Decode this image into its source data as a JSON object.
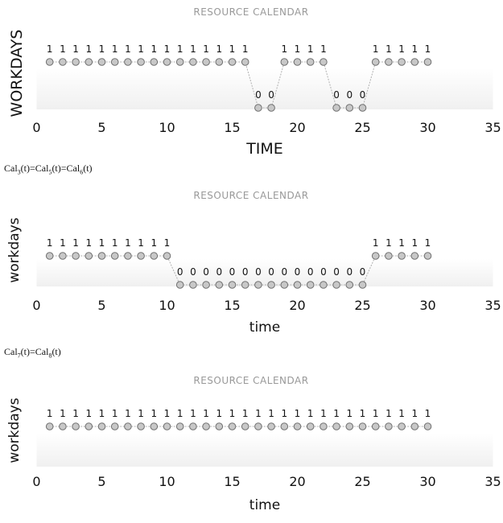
{
  "chart_data": [
    {
      "type": "line",
      "title": "RESOURCE CALENDAR",
      "xlabel": "TIME",
      "ylabel": "WORKDAYS",
      "xlim": [
        0,
        35
      ],
      "xticks": [
        0,
        5,
        10,
        15,
        20,
        25,
        30,
        35
      ],
      "ylim": [
        0,
        1
      ],
      "x": [
        1,
        2,
        3,
        4,
        5,
        6,
        7,
        8,
        9,
        10,
        11,
        12,
        13,
        14,
        15,
        16,
        17,
        18,
        19,
        20,
        21,
        22,
        23,
        24,
        25,
        26,
        27,
        28,
        29,
        30
      ],
      "values": [
        1,
        1,
        1,
        1,
        1,
        1,
        1,
        1,
        1,
        1,
        1,
        1,
        1,
        1,
        1,
        1,
        0,
        0,
        1,
        1,
        1,
        1,
        0,
        0,
        0,
        1,
        1,
        1,
        1,
        1
      ],
      "data_labels": true,
      "grid": false,
      "background": "gradient"
    },
    {
      "type": "line",
      "title": "RESOURCE CALENDAR",
      "xlabel": "time",
      "ylabel": "workdays",
      "xlim": [
        0,
        35
      ],
      "xticks": [
        0,
        5,
        10,
        15,
        20,
        25,
        30,
        35
      ],
      "ylim": [
        0,
        1
      ],
      "x": [
        1,
        2,
        3,
        4,
        5,
        6,
        7,
        8,
        9,
        10,
        11,
        12,
        13,
        14,
        15,
        16,
        17,
        18,
        19,
        20,
        21,
        22,
        23,
        24,
        25,
        26,
        27,
        28,
        29,
        30
      ],
      "values": [
        1,
        1,
        1,
        1,
        1,
        1,
        1,
        1,
        1,
        1,
        0,
        0,
        0,
        0,
        0,
        0,
        0,
        0,
        0,
        0,
        0,
        0,
        0,
        0,
        0,
        1,
        1,
        1,
        1,
        1
      ],
      "data_labels": true,
      "grid": false,
      "background": "gradient"
    },
    {
      "type": "line",
      "title": "RESOURCE CALENDAR",
      "xlabel": "time",
      "ylabel": "workdays",
      "xlim": [
        0,
        35
      ],
      "xticks": [
        0,
        5,
        10,
        15,
        20,
        25,
        30,
        35
      ],
      "ylim": [
        0,
        1
      ],
      "x": [
        1,
        2,
        3,
        4,
        5,
        6,
        7,
        8,
        9,
        10,
        11,
        12,
        13,
        14,
        15,
        16,
        17,
        18,
        19,
        20,
        21,
        22,
        23,
        24,
        25,
        26,
        27,
        28,
        29,
        30
      ],
      "values": [
        1,
        1,
        1,
        1,
        1,
        1,
        1,
        1,
        1,
        1,
        1,
        1,
        1,
        1,
        1,
        1,
        1,
        1,
        1,
        1,
        1,
        1,
        1,
        1,
        1,
        1,
        1,
        1,
        1,
        1
      ],
      "data_labels": true,
      "grid": false,
      "background": "gradient"
    }
  ],
  "captions": {
    "c1": {
      "lead": "Cal",
      "s1": "3",
      "a": "(t)=Cal",
      "s2": "5",
      "b": "(t)=Cal",
      "s3": "6",
      "c": "(t)"
    },
    "c2": {
      "lead": "Cal",
      "s1": "7",
      "a": "(t)=Cal",
      "s2": "8",
      "c": "(t)"
    }
  },
  "colors": {
    "title": "#999999",
    "marker_fill": "#c8c8c8",
    "marker_stroke": "#707070",
    "line": "#b0b0b0",
    "axis_text": "#111111",
    "band": "#f0f0f0"
  }
}
